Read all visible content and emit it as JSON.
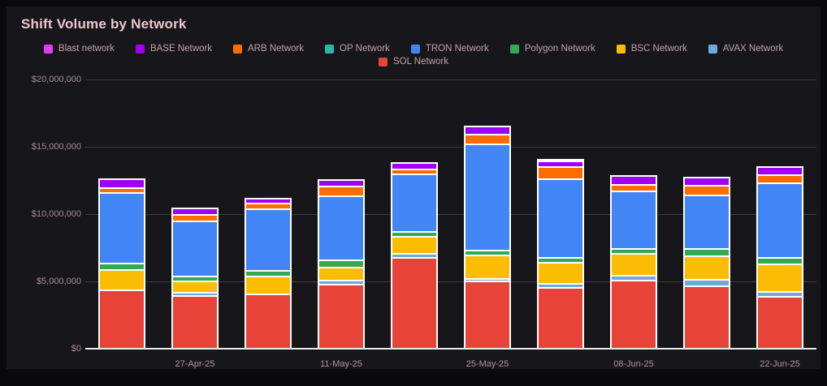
{
  "header": {
    "title": "Shift Volume by Network"
  },
  "colors": {
    "page_background": "#0a0a0d",
    "card_background": "#17171b",
    "title_text": "#eec6cb",
    "legend_text": "#c2a0a7",
    "axis_text": "#a68b90",
    "gridline": "#3b3b40",
    "baseline": "#ececec",
    "segment_border": "#ffffff"
  },
  "chart_data": {
    "type": "bar",
    "variant": "stacked",
    "title": "Shift Volume by Network",
    "ylim": [
      0,
      20000000
    ],
    "yticks": [
      {
        "value": 0,
        "label": "$0"
      },
      {
        "value": 5000000,
        "label": "$5,000,000"
      },
      {
        "value": 10000000,
        "label": "$10,000,000"
      },
      {
        "value": 15000000,
        "label": "$15,000,000"
      },
      {
        "value": 20000000,
        "label": "$20,000,000"
      }
    ],
    "x_labels": [
      "",
      "27-Apr-25",
      "",
      "11-May-25",
      "",
      "25-May-25",
      "",
      "08-Jun-25",
      "",
      "22-Jun-25"
    ],
    "grid": "horizontal",
    "legend_position": "top-center",
    "legend_rows": [
      [
        "Blast network",
        "BASE Network",
        "ARB Network",
        "OP Network",
        "TRON Network",
        "Polygon Network",
        "BSC Network",
        "AVAX Network"
      ],
      [
        "SOL Network"
      ]
    ],
    "stack_order_bottom_to_top": [
      "SOL Network",
      "AVAX Network",
      "BSC Network",
      "Polygon Network",
      "TRON Network",
      "OP Network",
      "ARB Network",
      "BASE Network",
      "Blast network"
    ],
    "series": [
      {
        "name": "Blast network",
        "color": "#e03df5",
        "values": [
          0,
          0,
          0,
          0,
          0,
          0,
          140000,
          0,
          0,
          0
        ]
      },
      {
        "name": "BASE Network",
        "color": "#9d00f5",
        "values": [
          620000,
          480000,
          340000,
          510000,
          490000,
          570000,
          420000,
          680000,
          600000,
          630000
        ]
      },
      {
        "name": "ARB Network",
        "color": "#ff6d00",
        "values": [
          420000,
          470000,
          410000,
          680000,
          350000,
          720000,
          850000,
          480000,
          720000,
          590000
        ]
      },
      {
        "name": "OP Network",
        "color": "#2ab7a9",
        "values": [
          0,
          0,
          0,
          0,
          0,
          0,
          0,
          0,
          0,
          0
        ]
      },
      {
        "name": "TRON Network",
        "color": "#4285f4",
        "values": [
          5200000,
          4100000,
          4620000,
          4800000,
          4300000,
          7900000,
          5850000,
          4250000,
          4000000,
          5550000
        ]
      },
      {
        "name": "Polygon Network",
        "color": "#34a853",
        "values": [
          500000,
          400000,
          370000,
          540000,
          390000,
          410000,
          370000,
          390000,
          540000,
          500000
        ]
      },
      {
        "name": "BSC Network",
        "color": "#fbbc04",
        "values": [
          1500000,
          800000,
          1350000,
          920000,
          1250000,
          1700000,
          1550000,
          1600000,
          1750000,
          2000000
        ]
      },
      {
        "name": "AVAX Network",
        "color": "#6fa8dc",
        "values": [
          0,
          240000,
          0,
          300000,
          300000,
          210000,
          360000,
          400000,
          480000,
          400000
        ]
      },
      {
        "name": "SOL Network",
        "color": "#e84338",
        "values": [
          4400000,
          4000000,
          4100000,
          4850000,
          6800000,
          5050000,
          4550000,
          5100000,
          4700000,
          3900000
        ]
      }
    ]
  }
}
